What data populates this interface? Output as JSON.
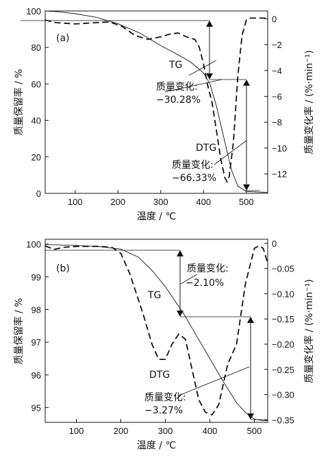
{
  "chart_data": [
    {
      "panel_label": "(a)",
      "type": "line",
      "xlabel": "温度 / ℃",
      "ylabel_left": "质量保留率 / %",
      "ylabel_right": "质量变化率 / (%·min⁻¹)",
      "xlim": [
        30,
        550
      ],
      "ylim_left": [
        0,
        100
      ],
      "ylim_right": [
        -13.5,
        0.6
      ],
      "x_ticks": [
        100,
        200,
        300,
        400,
        500
      ],
      "y_left_ticks": [
        0,
        20,
        40,
        60,
        80,
        100
      ],
      "y_right_ticks": [
        0,
        -2,
        -4,
        -6,
        -8,
        -10,
        -12
      ],
      "series": [
        {
          "name": "TG",
          "axis": "left",
          "style": "solid",
          "x": [
            30,
            60,
            100,
            150,
            200,
            250,
            300,
            340,
            370,
            400,
            415,
            430,
            450,
            465,
            480,
            500,
            550
          ],
          "y": [
            100,
            99.6,
            98.5,
            96.5,
            93,
            88,
            81,
            76,
            72,
            66,
            60,
            48,
            28,
            13,
            4,
            1,
            0.5
          ]
        },
        {
          "name": "DTG",
          "axis": "right",
          "style": "dashed",
          "x": [
            30,
            55,
            100,
            150,
            180,
            210,
            240,
            270,
            300,
            320,
            340,
            360,
            380,
            390,
            400,
            410,
            420,
            430,
            440,
            450,
            455,
            460,
            470,
            480,
            490,
            500,
            510,
            550
          ],
          "y": [
            -0.1,
            -0.3,
            -0.4,
            -0.3,
            -0.25,
            -0.6,
            -1.3,
            -1.6,
            -1.4,
            -1.2,
            -1.1,
            -1.4,
            -1.6,
            -2.2,
            -3.5,
            -5.2,
            -6.5,
            -8.6,
            -10.8,
            -12.3,
            -12.6,
            -12.2,
            -9.5,
            -4.5,
            -1.3,
            -0.1,
            0.05,
            0.05
          ]
        }
      ],
      "annotations": [
        {
          "text": "TG"
        },
        {
          "text": "质量变化:"
        },
        {
          "text": "−30.28%"
        },
        {
          "text": "DTG"
        },
        {
          "text": "质量变化:"
        },
        {
          "text": "−66.33%"
        }
      ]
    },
    {
      "panel_label": "(b)",
      "type": "line",
      "xlabel": "温度 / ℃",
      "ylabel_left": "质量保留率 / %",
      "ylabel_right": "质量变化率 / (%·min⁻¹)",
      "xlim": [
        30,
        530
      ],
      "ylim_left": [
        94.55,
        100.15
      ],
      "ylim_right": [
        -0.355,
        0.008
      ],
      "x_ticks": [
        100,
        200,
        300,
        400,
        500
      ],
      "y_left_ticks": [
        95,
        96,
        97,
        98,
        99,
        100
      ],
      "y_right_ticks": [
        0,
        -0.05,
        -0.1,
        -0.15,
        -0.2,
        -0.25,
        -0.3,
        -0.35
      ],
      "series": [
        {
          "name": "TG",
          "axis": "left",
          "style": "solid",
          "x": [
            30,
            100,
            150,
            200,
            240,
            270,
            300,
            320,
            340,
            370,
            400,
            430,
            460,
            480,
            500,
            520,
            530
          ],
          "y": [
            99.99,
            99.96,
            99.93,
            99.85,
            99.6,
            99.2,
            98.7,
            98.3,
            97.9,
            97.2,
            96.5,
            95.8,
            95.15,
            94.85,
            94.65,
            94.6,
            94.6
          ]
        },
        {
          "name": "DTG",
          "axis": "right",
          "style": "dashed",
          "x": [
            30,
            50,
            70,
            100,
            150,
            180,
            200,
            220,
            250,
            270,
            285,
            300,
            315,
            330,
            345,
            360,
            375,
            390,
            405,
            420,
            440,
            460,
            480,
            500,
            510,
            520,
            530
          ],
          "y": [
            -0.005,
            -0.012,
            -0.008,
            -0.006,
            -0.006,
            -0.008,
            -0.02,
            -0.06,
            -0.14,
            -0.2,
            -0.23,
            -0.23,
            -0.2,
            -0.18,
            -0.19,
            -0.25,
            -0.31,
            -0.335,
            -0.34,
            -0.32,
            -0.24,
            -0.2,
            -0.08,
            -0.01,
            -0.005,
            -0.01,
            -0.04
          ]
        }
      ],
      "annotations": [
        {
          "text": "质量变化:"
        },
        {
          "text": "−2.10%"
        },
        {
          "text": "TG"
        },
        {
          "text": "DTG"
        },
        {
          "text": "质量变化:"
        },
        {
          "text": "−3.27%"
        }
      ]
    }
  ]
}
